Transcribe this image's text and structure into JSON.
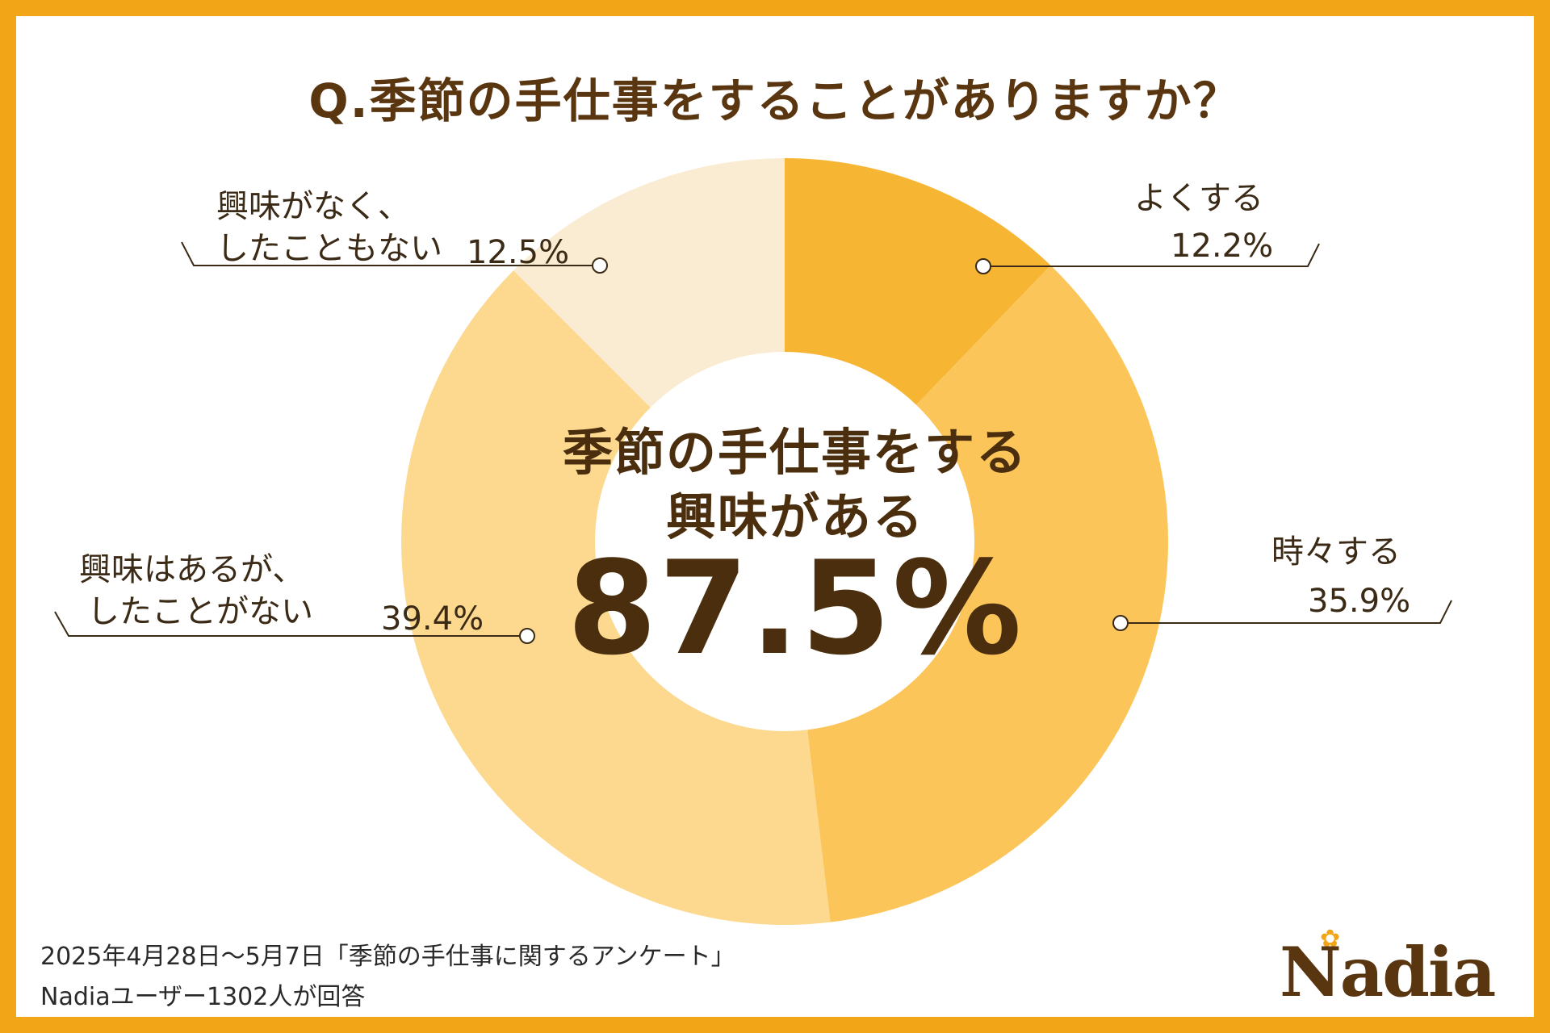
{
  "title": "Q.季節の手仕事をすることがありますか？",
  "colors": {
    "border": "#f2a516",
    "slice_1": "#f7b534",
    "slice_2": "#fbc55a",
    "slice_3": "#fcd98f",
    "slice_4": "#faecd2",
    "text_dark": "#4a2e0d"
  },
  "chart_data": {
    "type": "pie",
    "title": "Q.季節の手仕事をすることがありますか？",
    "slices": [
      {
        "label": "よくする",
        "value": 12.2,
        "value_label": "12.2%"
      },
      {
        "label": "時々する",
        "value": 35.9,
        "value_label": "35.9%"
      },
      {
        "label": "興味はあるが、したことがない",
        "value": 39.4,
        "value_label": "39.4%"
      },
      {
        "label": "興味がなく、したこともない",
        "value": 12.5,
        "value_label": "12.5%"
      }
    ],
    "donut": true,
    "center": {
      "line1": "季節の手仕事をする",
      "line2": "興味がある",
      "value": "87.5%"
    }
  },
  "callouts": {
    "yoku": {
      "label_line1": "よくする",
      "value": "12.2%"
    },
    "tokidoki": {
      "label_line1": "時々する",
      "value": "35.9%"
    },
    "kyomi_aru": {
      "label_line1": "興味はあるが、",
      "label_line2": "したことがない",
      "value": "39.4%"
    },
    "kyomi_nai": {
      "label_line1": "興味がなく、",
      "label_line2": "したこともない",
      "value": "12.5%"
    }
  },
  "footer": {
    "line1": "2025年4月28日〜5月7日「季節の手仕事に関するアンケート」",
    "line2": "Nadiaユーザー1302人が回答"
  },
  "logo": {
    "text": "Nadia"
  }
}
